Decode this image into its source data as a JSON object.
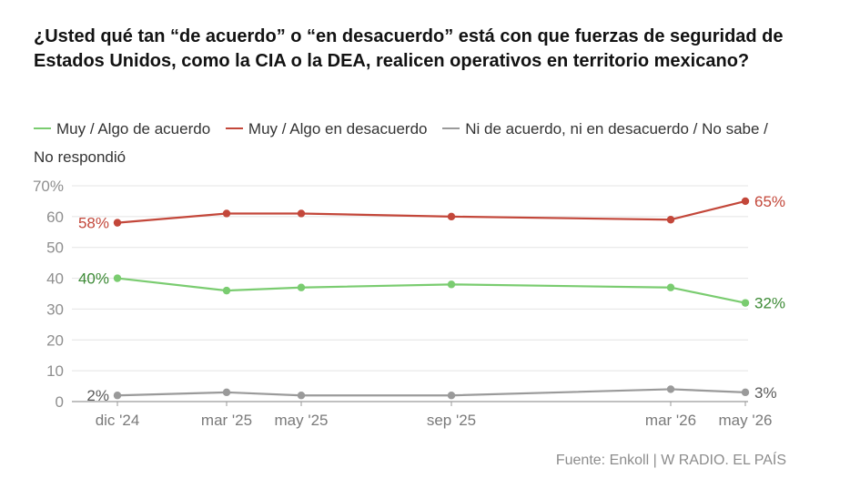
{
  "title": "¿Usted qué tan “de acuerdo” o “en desacuerdo” está con que fuerzas de seguridad de Estados Unidos, como la CIA o la DEA, realicen operativos en territorio mexicano?",
  "source": "Fuente: Enkoll | W RADIO. EL PAÍS",
  "colors": {
    "agree": "#7acc70",
    "disagree": "#c3473a",
    "neutral": "#9a9a9a",
    "agree_label": "#3c8a35",
    "disagree_label": "#c3473a",
    "neutral_label": "#5a5a5a"
  },
  "chart_data": {
    "type": "line",
    "x": [
      "dic '24",
      "mar '25",
      "may '25",
      "sep '25",
      "mar '26",
      "may '26"
    ],
    "y_ticks": [
      "70%",
      "60",
      "50",
      "40",
      "30",
      "20",
      "10",
      "0"
    ],
    "ylim": [
      0,
      70
    ],
    "grid": true,
    "legend_position": "top",
    "series": [
      {
        "name": "Muy / Algo de acuerdo",
        "color_key": "agree",
        "values": [
          40,
          36,
          37,
          38,
          37,
          32
        ],
        "start_label": "40%",
        "end_label": "32%"
      },
      {
        "name": "Muy / Algo en desacuerdo",
        "color_key": "disagree",
        "values": [
          58,
          61,
          61,
          60,
          59,
          65
        ],
        "start_label": "58%",
        "end_label": "65%"
      },
      {
        "name": "Ni de acuerdo, ni en desacuerdo / No sabe / No respondió",
        "color_key": "neutral",
        "values": [
          2,
          3,
          2,
          2,
          4,
          3
        ],
        "start_label": "2%",
        "end_label": "3%"
      }
    ]
  }
}
